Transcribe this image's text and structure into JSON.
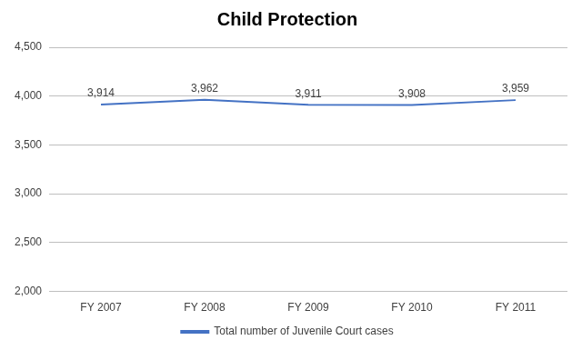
{
  "chart_data": {
    "type": "line",
    "title": "Child Protection",
    "categories": [
      "FY 2007",
      "FY 2008",
      "FY 2009",
      "FY 2010",
      "FY 2011"
    ],
    "series": [
      {
        "name": "Total number of Juvenile Court cases",
        "color": "#4472C4",
        "values": [
          3914,
          3962,
          3911,
          3908,
          3959
        ],
        "value_labels": [
          "3,914",
          "3,962",
          "3,911",
          "3,908",
          "3,959"
        ]
      }
    ],
    "ylim": [
      2000,
      4500
    ],
    "yticks": [
      {
        "value": 2000,
        "label": "2,000"
      },
      {
        "value": 2500,
        "label": "2,500"
      },
      {
        "value": 3000,
        "label": "3,000"
      },
      {
        "value": 3500,
        "label": "3,500"
      },
      {
        "value": 4000,
        "label": "4,000"
      },
      {
        "value": 4500,
        "label": "4,500"
      }
    ],
    "grid": true,
    "legend": "bottom",
    "data_labels": true
  }
}
